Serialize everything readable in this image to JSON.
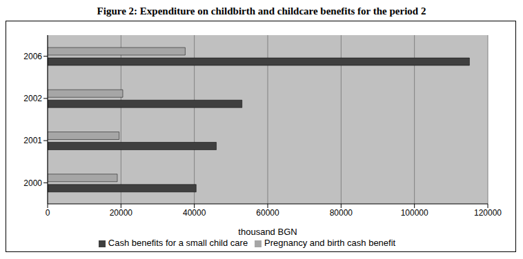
{
  "chart_data": {
    "type": "bar",
    "orientation": "horizontal",
    "title": "Figure 2: Expenditure on childbirth and childcare benefits for the period 2",
    "categories": [
      "2000",
      "2001",
      "2002",
      "2006"
    ],
    "series": [
      {
        "name": "Pregnancy and birth cash benefit",
        "color": "#a6a6a6",
        "values": [
          19000,
          19500,
          20500,
          37500
        ]
      },
      {
        "name": "Cash benefits for a small child care",
        "color": "#3f3f3f",
        "values": [
          40500,
          46000,
          53000,
          115000
        ]
      }
    ],
    "xlabel": "thousand BGN",
    "xlim": [
      0,
      120000
    ],
    "xticks": [
      0,
      20000,
      40000,
      60000,
      80000,
      100000,
      120000
    ],
    "grid": true,
    "legend": "bottom"
  }
}
